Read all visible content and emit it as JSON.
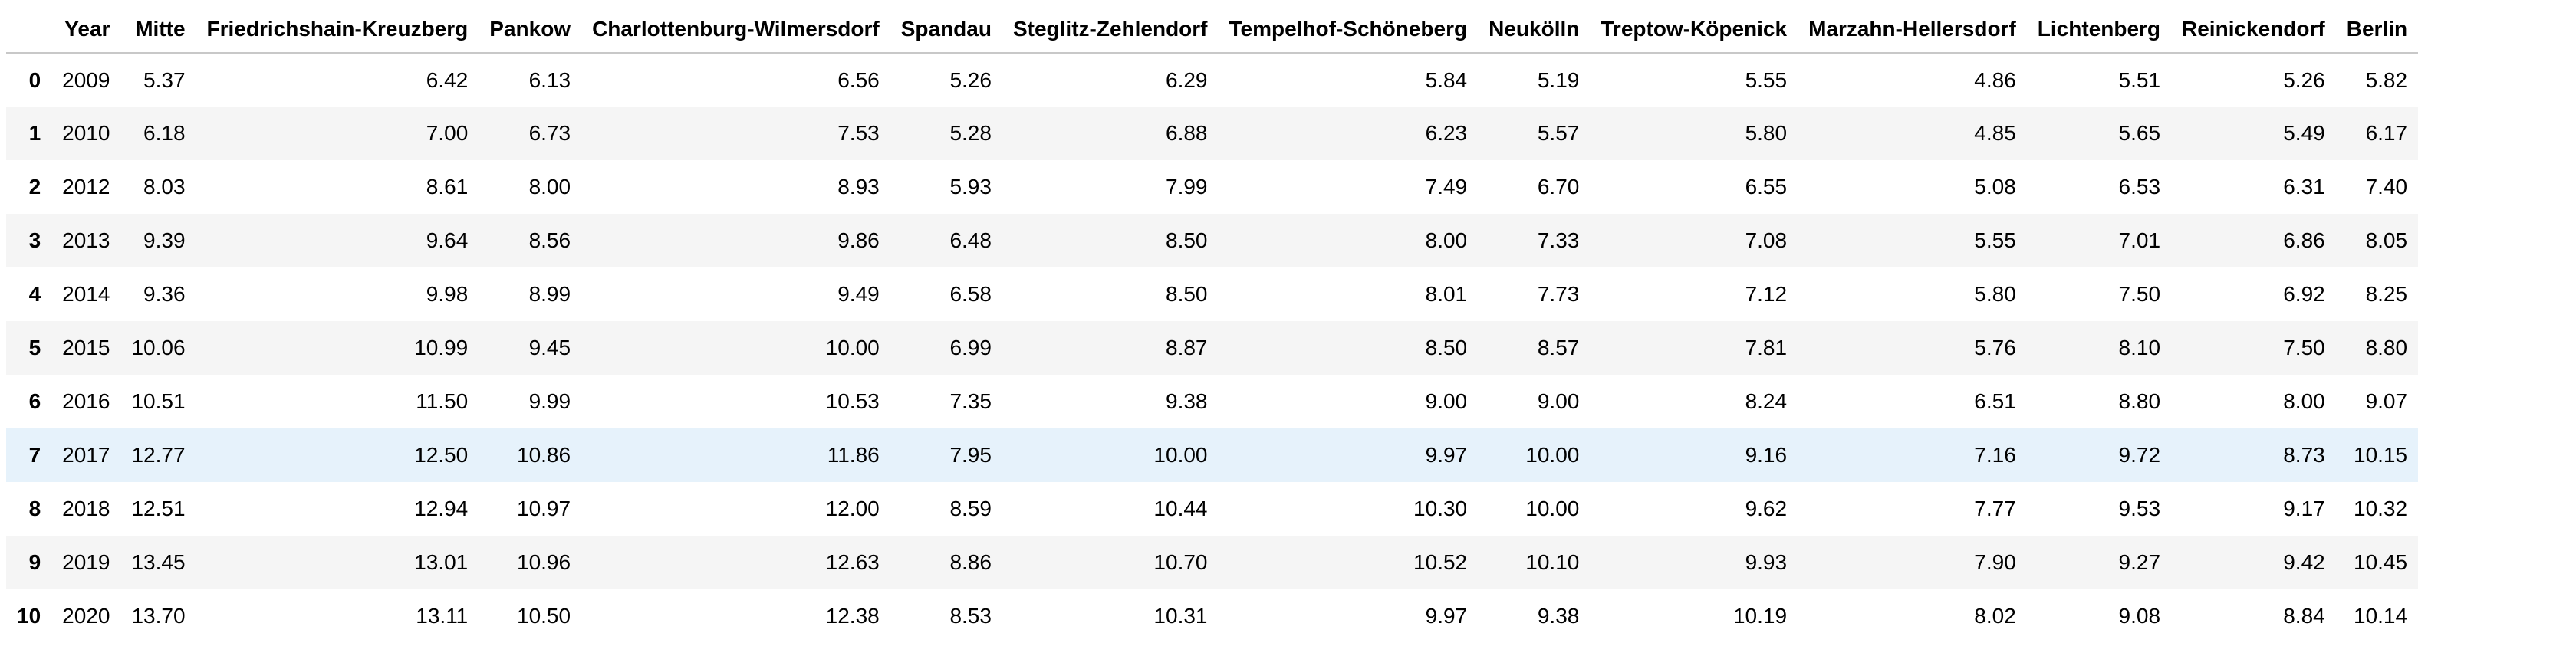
{
  "table": {
    "columns": [
      "",
      "Year",
      "Mitte",
      "Friedrichshain-Kreuzberg",
      "Pankow",
      "Charlottenburg-Wilmersdorf",
      "Spandau",
      "Steglitz-Zehlendorf",
      "Tempelhof-Schöneberg",
      "Neukölln",
      "Treptow-Köpenick",
      "Marzahn-Hellersdorf",
      "Lichtenberg",
      "Reinickendorf",
      "Berlin"
    ],
    "rows": [
      {
        "index": "0",
        "cells": [
          "2009",
          "5.37",
          "6.42",
          "6.13",
          "6.56",
          "5.26",
          "6.29",
          "5.84",
          "5.19",
          "5.55",
          "4.86",
          "5.51",
          "5.26",
          "5.82"
        ]
      },
      {
        "index": "1",
        "cells": [
          "2010",
          "6.18",
          "7.00",
          "6.73",
          "7.53",
          "5.28",
          "6.88",
          "6.23",
          "5.57",
          "5.80",
          "4.85",
          "5.65",
          "5.49",
          "6.17"
        ]
      },
      {
        "index": "2",
        "cells": [
          "2012",
          "8.03",
          "8.61",
          "8.00",
          "8.93",
          "5.93",
          "7.99",
          "7.49",
          "6.70",
          "6.55",
          "5.08",
          "6.53",
          "6.31",
          "7.40"
        ]
      },
      {
        "index": "3",
        "cells": [
          "2013",
          "9.39",
          "9.64",
          "8.56",
          "9.86",
          "6.48",
          "8.50",
          "8.00",
          "7.33",
          "7.08",
          "5.55",
          "7.01",
          "6.86",
          "8.05"
        ]
      },
      {
        "index": "4",
        "cells": [
          "2014",
          "9.36",
          "9.98",
          "8.99",
          "9.49",
          "6.58",
          "8.50",
          "8.01",
          "7.73",
          "7.12",
          "5.80",
          "7.50",
          "6.92",
          "8.25"
        ]
      },
      {
        "index": "5",
        "cells": [
          "2015",
          "10.06",
          "10.99",
          "9.45",
          "10.00",
          "6.99",
          "8.87",
          "8.50",
          "8.57",
          "7.81",
          "5.76",
          "8.10",
          "7.50",
          "8.80"
        ]
      },
      {
        "index": "6",
        "cells": [
          "2016",
          "10.51",
          "11.50",
          "9.99",
          "10.53",
          "7.35",
          "9.38",
          "9.00",
          "9.00",
          "8.24",
          "6.51",
          "8.80",
          "8.00",
          "9.07"
        ]
      },
      {
        "index": "7",
        "cells": [
          "2017",
          "12.77",
          "12.50",
          "10.86",
          "11.86",
          "7.95",
          "10.00",
          "9.97",
          "10.00",
          "9.16",
          "7.16",
          "9.72",
          "8.73",
          "10.15"
        ]
      },
      {
        "index": "8",
        "cells": [
          "2018",
          "12.51",
          "12.94",
          "10.97",
          "12.00",
          "8.59",
          "10.44",
          "10.30",
          "10.00",
          "9.62",
          "7.77",
          "9.53",
          "9.17",
          "10.32"
        ]
      },
      {
        "index": "9",
        "cells": [
          "2019",
          "13.45",
          "13.01",
          "10.96",
          "12.63",
          "8.86",
          "10.70",
          "10.52",
          "10.10",
          "9.93",
          "7.90",
          "9.27",
          "9.42",
          "10.45"
        ]
      },
      {
        "index": "10",
        "cells": [
          "2020",
          "13.70",
          "13.11",
          "10.50",
          "12.38",
          "8.53",
          "10.31",
          "9.97",
          "9.38",
          "10.19",
          "8.02",
          "9.08",
          "8.84",
          "10.14"
        ]
      }
    ],
    "highlighted_row": 7
  }
}
